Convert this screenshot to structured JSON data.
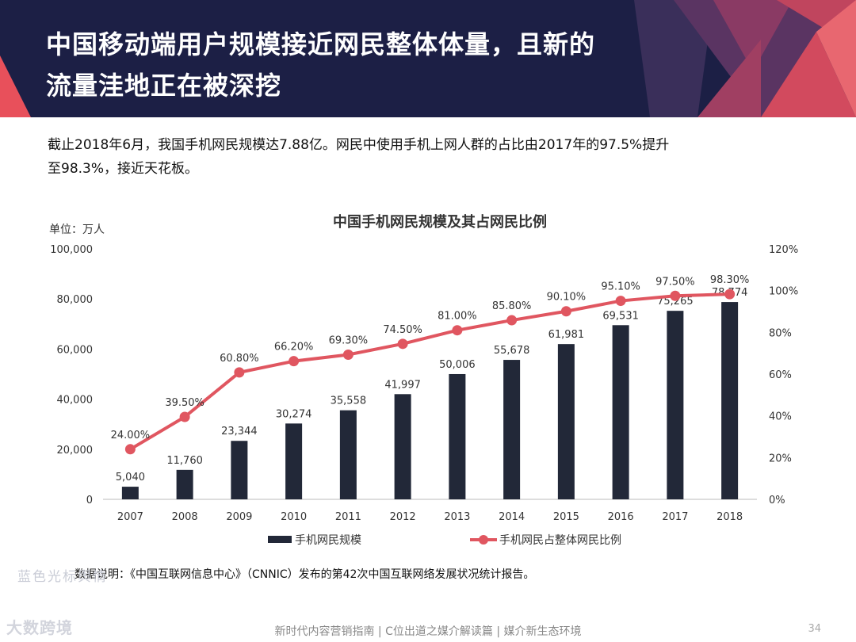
{
  "header": {
    "title_line1": "中国移动端用户规模接近网民整体体量，且新的",
    "title_line2": "流量洼地正在被深挖",
    "bg_color": "#1c1f45",
    "accent_color": "#e8505b"
  },
  "summary": {
    "line1": "截止2018年6月，我国手机网民规模达7.88亿。网民中使用手机上网人群的占比由2017年的97.5%提升",
    "line2": "至98.3%，接近天花板。"
  },
  "chart_data": {
    "type": "bar",
    "title": "中国手机网民规模及其占网民比例",
    "unit_label": "单位：万人",
    "categories": [
      "2007",
      "2008",
      "2009",
      "2010",
      "2011",
      "2012",
      "2013",
      "2014",
      "2015",
      "2016",
      "2017",
      "2018"
    ],
    "series": [
      {
        "name": "手机网民规模",
        "type": "bar",
        "axis": "left",
        "color": "#222838",
        "values": [
          5040,
          11760,
          23344,
          30274,
          35558,
          41997,
          50006,
          55678,
          61981,
          69531,
          75265,
          78774
        ],
        "labels": [
          "5,040",
          "11,760",
          "23,344",
          "30,274",
          "35,558",
          "41,997",
          "50,006",
          "55,678",
          "61,981",
          "69,531",
          "75,265",
          "78,774"
        ]
      },
      {
        "name": "手机网民占整体网民比例",
        "type": "line",
        "axis": "right",
        "color": "#e05660",
        "values": [
          24.0,
          39.5,
          60.8,
          66.2,
          69.3,
          74.5,
          81.0,
          85.8,
          90.1,
          95.1,
          97.5,
          98.3
        ],
        "labels": [
          "24.00%",
          "39.50%",
          "60.80%",
          "66.20%",
          "69.30%",
          "74.50%",
          "81.00%",
          "85.80%",
          "90.10%",
          "95.10%",
          "97.50%",
          "98.30%"
        ]
      }
    ],
    "y_left": {
      "min": 0,
      "max": 100000,
      "ticks": [
        0,
        20000,
        40000,
        60000,
        80000,
        100000
      ],
      "tick_labels": [
        "0",
        "20,000",
        "40,000",
        "60,000",
        "80,000",
        "100,000"
      ]
    },
    "y_right": {
      "min": 0,
      "max": 120,
      "ticks": [
        0,
        20,
        40,
        60,
        80,
        100,
        120
      ],
      "tick_labels": [
        "0%",
        "20%",
        "40%",
        "60%",
        "80%",
        "100%",
        "120%"
      ]
    },
    "grid": false,
    "legend_position": "bottom"
  },
  "note": "数据说明：《中国互联网信息中心》（CNNIC）发布的第42次中国互联网络发展状况统计报告。",
  "watermark": {
    "line1": "蓝色光标舆情",
    "line2": "大数跨境"
  },
  "footer": {
    "text": "新时代内容营销指南 | C位出道之媒介解读篇 | 媒介新生态环境",
    "page": "34"
  }
}
